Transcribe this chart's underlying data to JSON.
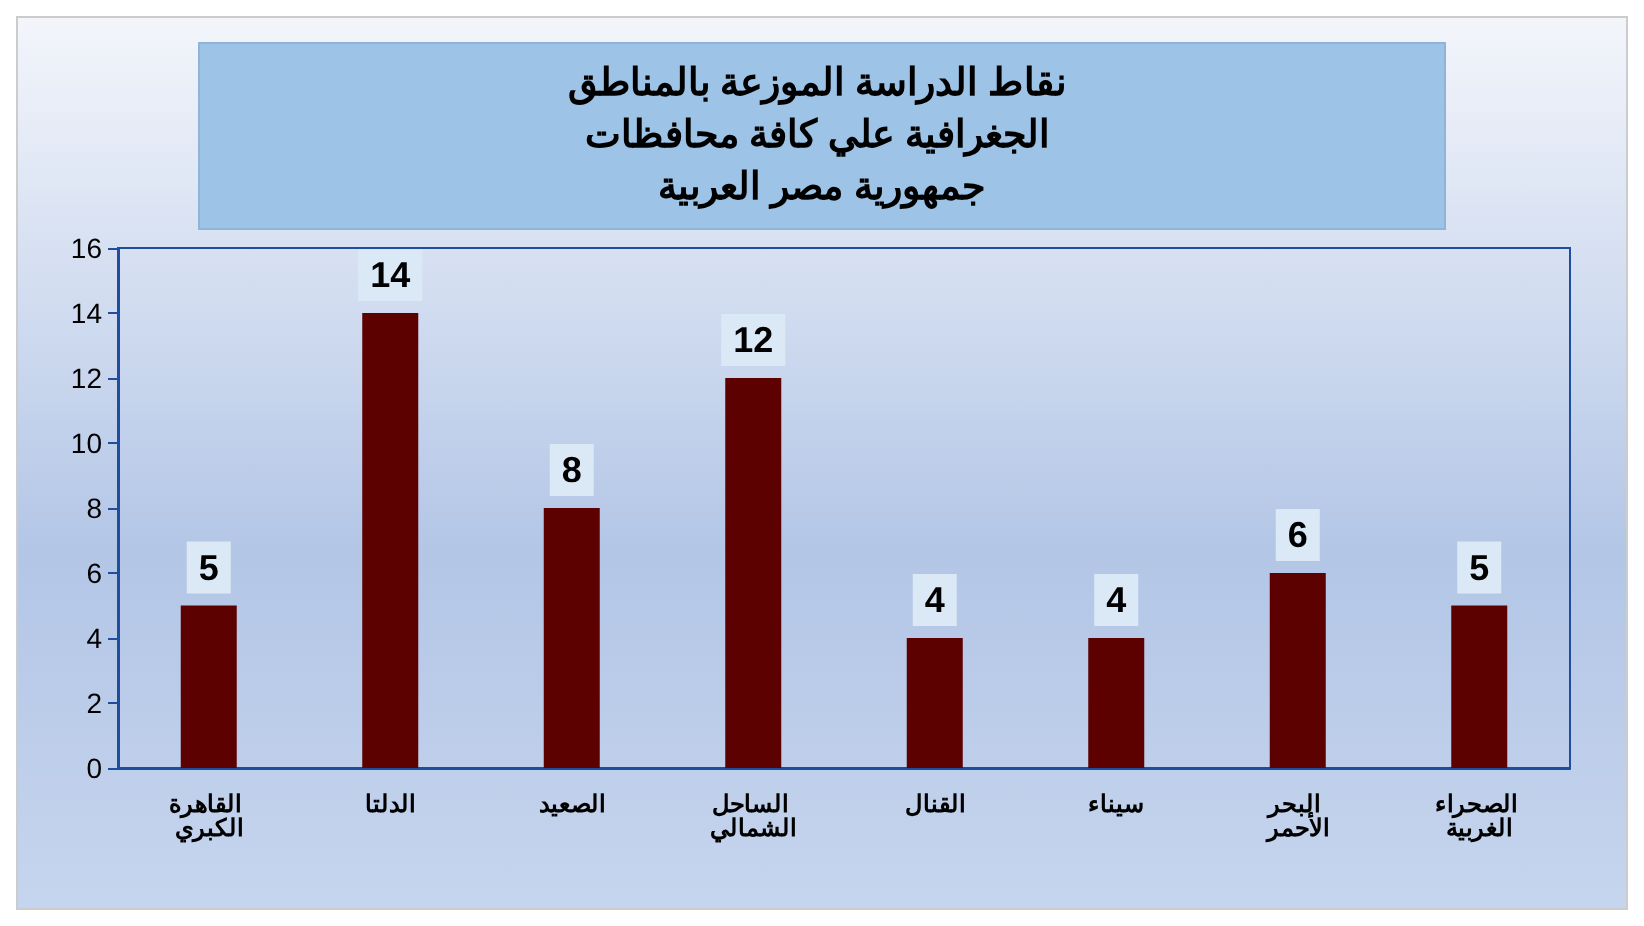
{
  "chart_data": {
    "type": "bar",
    "title": "نقاط الدراسة الموزعة بالمناطق الجغرافية علي كافة محافظات جمهورية مصر العربية",
    "categories": [
      "القاهرة الكبري",
      "الدلتا",
      "الصعيد",
      "الساحل الشمالي",
      "القنال",
      "سيناء",
      "البحر الأحمر",
      "الصحراء الغربية"
    ],
    "values": [
      5,
      14,
      8,
      12,
      4,
      4,
      6,
      5
    ],
    "color": "#5c0000",
    "ylim": [
      0,
      16
    ],
    "yticks": [
      0,
      2,
      4,
      6,
      8,
      10,
      12,
      14,
      16
    ],
    "grid": false,
    "data_labels": true
  }
}
